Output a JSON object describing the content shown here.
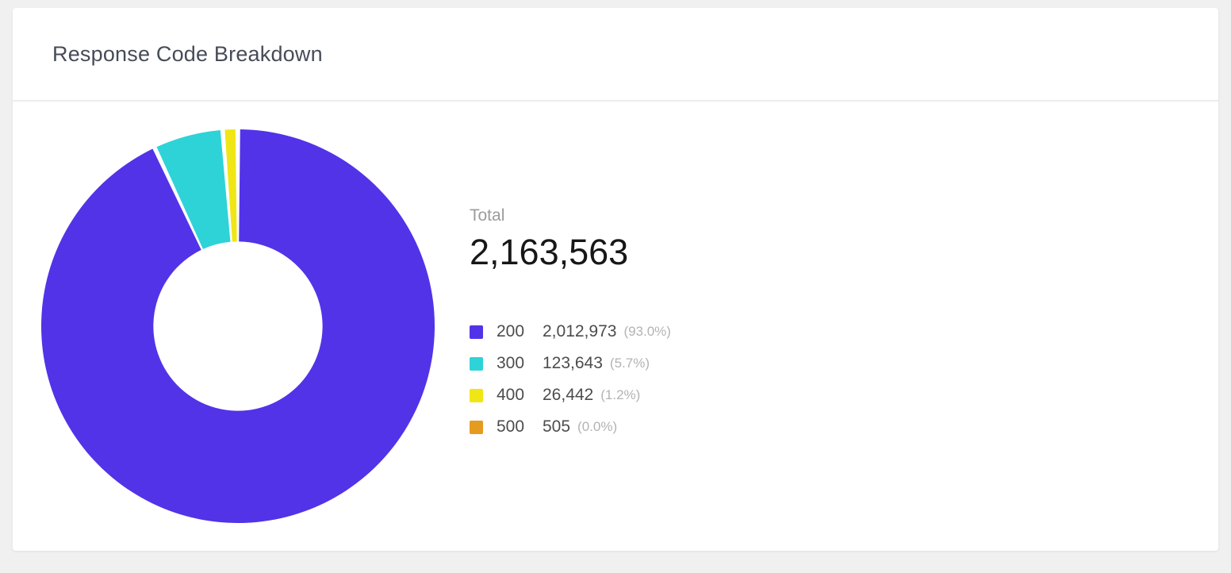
{
  "card": {
    "title": "Response Code Breakdown"
  },
  "total": {
    "label": "Total",
    "value": "2,163,563"
  },
  "chart_data": {
    "type": "pie",
    "subtype": "donut",
    "title": "Response Code Breakdown",
    "total": 2163563,
    "total_display": "2,163,563",
    "categories": [
      "200",
      "300",
      "400",
      "500"
    ],
    "values": [
      2012973,
      123643,
      26442,
      505
    ],
    "display_values": [
      "2,012,973",
      "123,643",
      "26,442",
      "505"
    ],
    "percent_labels": [
      "(93.0%)",
      "(5.7%)",
      "(1.2%)",
      "(0.0%)"
    ],
    "percents": [
      93.0,
      5.7,
      1.2,
      0.0
    ],
    "colors": [
      "#5233e8",
      "#2ed3d8",
      "#f0e616",
      "#e59a20"
    ],
    "start_angle_deg": 0,
    "direction": "clockwise",
    "pad_angle_deg": 1.3,
    "inner_radius_ratio": 0.43,
    "legend_position": "right"
  }
}
